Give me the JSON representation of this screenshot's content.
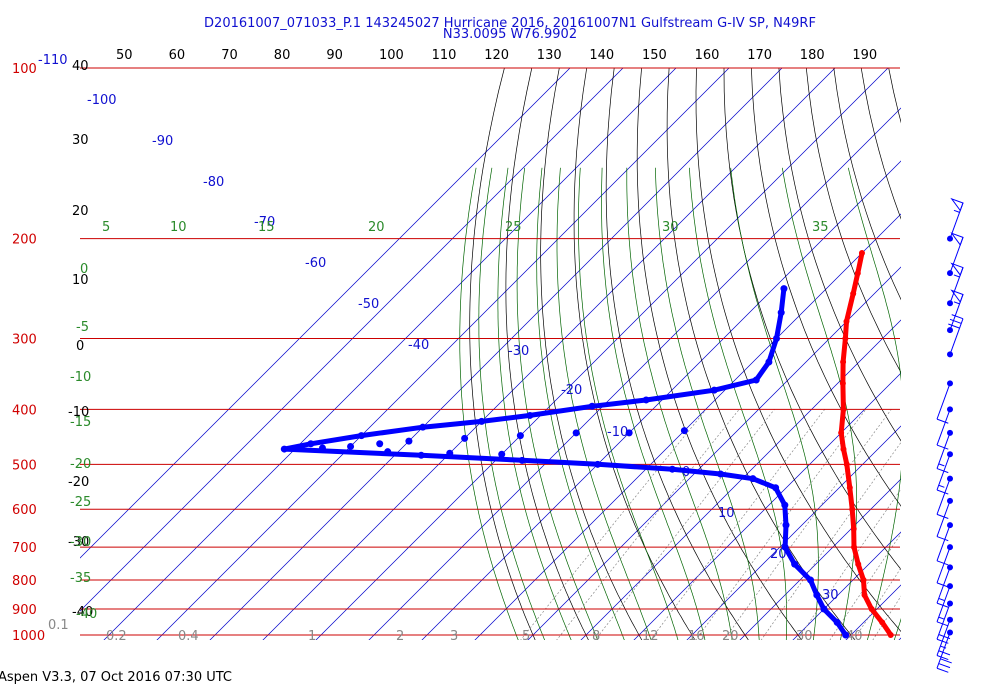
{
  "header": {
    "title_line1": "D20161007_071033_P.1 143245027 Hurricane 2016, 20161007N1 Gulfstream G-IV SP, N49RF",
    "title_line2": "N33.0095 W76.9902"
  },
  "footer": {
    "text": "Aspen V3.3, 07 Oct 2016  07:30 UTC"
  },
  "colors": {
    "temperature": "#ff0000",
    "dewpoint": "#0000ff",
    "isobar": "#cc0000",
    "isotherm": "#0000cc",
    "dry_adiabat": "#000000",
    "moist_adiabat": "#006400",
    "mixing_ratio": "#888888",
    "wind_barb": "#0000ff"
  },
  "chart_data": {
    "type": "skew-t log-p",
    "pressure_levels_hpa": [
      "100",
      "200",
      "300",
      "400",
      "500",
      "600",
      "700",
      "800",
      "900",
      "1000"
    ],
    "top_temperature_labels": [
      "50",
      "60",
      "70",
      "80",
      "90",
      "100",
      "110",
      "120",
      "130",
      "140",
      "150",
      "160",
      "170",
      "180",
      "190"
    ],
    "isotherm_labels": [
      "-110",
      "-100",
      "-90",
      "-80",
      "-70",
      "-60",
      "-50",
      "-40",
      "-30",
      "-20",
      "-10",
      "0",
      "10",
      "20",
      "30"
    ],
    "dry_adiabat_labels": [
      "40",
      "30",
      "20",
      "10",
      "0",
      "-10",
      "-20",
      "-30",
      "-40"
    ],
    "moist_adiabat_labels": [
      "5",
      "10",
      "15",
      "20",
      "25",
      "30",
      "35",
      "0",
      "-5",
      "-10",
      "-15",
      "-20",
      "-25",
      "-30",
      "-35",
      "-40"
    ],
    "mixing_ratio_labels": [
      "0.1",
      "0.2",
      "0.4",
      "1",
      "2",
      "3",
      "5",
      "8",
      "12",
      "16",
      "20",
      "30",
      "40"
    ],
    "temperature_profile": [
      {
        "p": 212,
        "t": -50
      },
      {
        "p": 230,
        "t": -47
      },
      {
        "p": 250,
        "t": -44
      },
      {
        "p": 280,
        "t": -40
      },
      {
        "p": 300,
        "t": -37
      },
      {
        "p": 330,
        "t": -33
      },
      {
        "p": 360,
        "t": -29
      },
      {
        "p": 400,
        "t": -24
      },
      {
        "p": 440,
        "t": -20
      },
      {
        "p": 470,
        "t": -16.5
      },
      {
        "p": 500,
        "t": -13
      },
      {
        "p": 550,
        "t": -8
      },
      {
        "p": 600,
        "t": -3.5
      },
      {
        "p": 650,
        "t": 0.5
      },
      {
        "p": 700,
        "t": 4
      },
      {
        "p": 750,
        "t": 8
      },
      {
        "p": 800,
        "t": 12
      },
      {
        "p": 850,
        "t": 15
      },
      {
        "p": 900,
        "t": 19
      },
      {
        "p": 950,
        "t": 23.5
      },
      {
        "p": 1000,
        "t": 27.5
      }
    ],
    "dewpoint_profile": [
      {
        "p": 245,
        "t": -58
      },
      {
        "p": 270,
        "t": -54
      },
      {
        "p": 300,
        "t": -50
      },
      {
        "p": 330,
        "t": -47
      },
      {
        "p": 355,
        "t": -46
      },
      {
        "p": 370,
        "t": -52
      },
      {
        "p": 385,
        "t": -63
      },
      {
        "p": 395,
        "t": -72
      },
      {
        "p": 410,
        "t": -82
      },
      {
        "p": 420,
        "t": -90
      },
      {
        "p": 430,
        "t": -100
      },
      {
        "p": 445,
        "t": -110
      },
      {
        "p": 460,
        "t": -118
      },
      {
        "p": 470,
        "t": -122
      },
      {
        "p": 482,
        "t": -95
      },
      {
        "p": 492,
        "t": -75
      },
      {
        "p": 500,
        "t": -60
      },
      {
        "p": 510,
        "t": -45
      },
      {
        "p": 520,
        "t": -35
      },
      {
        "p": 530,
        "t": -28
      },
      {
        "p": 550,
        "t": -22
      },
      {
        "p": 590,
        "t": -17
      },
      {
        "p": 640,
        "t": -13
      },
      {
        "p": 700,
        "t": -9
      },
      {
        "p": 750,
        "t": -4
      },
      {
        "p": 800,
        "t": 2
      },
      {
        "p": 850,
        "t": 6
      },
      {
        "p": 900,
        "t": 10
      },
      {
        "p": 950,
        "t": 15
      },
      {
        "p": 1000,
        "t": 19
      }
    ],
    "dewpoint_scatter": [
      {
        "p": 440,
        "t": -60
      },
      {
        "p": 440,
        "t": -70
      },
      {
        "p": 445,
        "t": -80
      },
      {
        "p": 450,
        "t": -90
      },
      {
        "p": 455,
        "t": -100
      },
      {
        "p": 460,
        "t": -105
      },
      {
        "p": 465,
        "t": -110
      },
      {
        "p": 468,
        "t": -115
      },
      {
        "p": 436,
        "t": -50
      },
      {
        "p": 475,
        "t": -102
      },
      {
        "p": 478,
        "t": -90
      },
      {
        "p": 480,
        "t": -80
      }
    ],
    "wind_barbs": [
      {
        "p": 200,
        "speed_kt": 55
      },
      {
        "p": 230,
        "speed_kt": 50
      },
      {
        "p": 260,
        "speed_kt": 55
      },
      {
        "p": 290,
        "speed_kt": 55
      },
      {
        "p": 320,
        "speed_kt": 30
      },
      {
        "p": 360,
        "speed_kt": 10
      },
      {
        "p": 400,
        "speed_kt": 10
      },
      {
        "p": 440,
        "speed_kt": 15
      },
      {
        "p": 480,
        "speed_kt": 15
      },
      {
        "p": 530,
        "speed_kt": 10
      },
      {
        "p": 580,
        "speed_kt": 10
      },
      {
        "p": 640,
        "speed_kt": 10
      },
      {
        "p": 700,
        "speed_kt": 10
      },
      {
        "p": 760,
        "speed_kt": 15
      },
      {
        "p": 820,
        "speed_kt": 15
      },
      {
        "p": 880,
        "speed_kt": 20
      },
      {
        "p": 940,
        "speed_kt": 25
      },
      {
        "p": 990,
        "speed_kt": 30
      }
    ],
    "isolated_points": [
      {
        "p": 180,
        "t": -45
      }
    ]
  }
}
